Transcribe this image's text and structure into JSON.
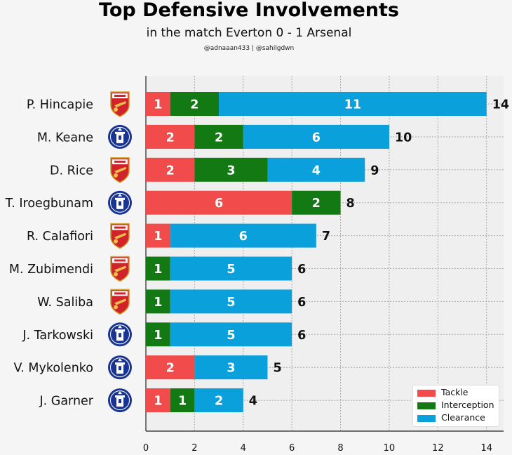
{
  "header": {
    "title": "Top Defensive Involvements",
    "subtitle": "in the match Everton 0 - 1 Arsenal",
    "credits": "@adnaaan433  | @sahilgdwn"
  },
  "colors": {
    "tackle": "#f24b4b",
    "interception": "#137a13",
    "clearance": "#0aa0dc",
    "arsenal_red": "#d1232a",
    "everton_blue": "#1a3590",
    "plot_bg": "#efefef",
    "page_bg": "#f5f5f5"
  },
  "chart_data": {
    "type": "bar",
    "orientation": "horizontal",
    "stacked": true,
    "categories": [
      "P. Hincapie",
      "M. Keane",
      "D. Rice",
      "T. Iroegbunam",
      "R. Calafiori",
      "M. Zubimendi",
      "W. Saliba",
      "J. Tarkowski",
      "V. Mykolenko",
      "J. Garner"
    ],
    "teams": [
      "Arsenal",
      "Everton",
      "Arsenal",
      "Everton",
      "Arsenal",
      "Arsenal",
      "Arsenal",
      "Everton",
      "Everton",
      "Everton"
    ],
    "series": [
      {
        "name": "Tackle",
        "key": "tackle",
        "values": [
          1,
          2,
          2,
          6,
          1,
          0,
          0,
          0,
          2,
          1
        ]
      },
      {
        "name": "Interception",
        "key": "interception",
        "values": [
          2,
          2,
          3,
          2,
          0,
          1,
          1,
          1,
          0,
          1
        ]
      },
      {
        "name": "Clearance",
        "key": "clearance",
        "values": [
          11,
          6,
          4,
          0,
          6,
          5,
          5,
          5,
          3,
          2
        ]
      }
    ],
    "totals": [
      14,
      10,
      9,
      8,
      7,
      6,
      6,
      6,
      5,
      4
    ],
    "xlim": [
      0,
      14.7
    ],
    "xticks": [
      0,
      2,
      4,
      6,
      8,
      10,
      12,
      14
    ],
    "grid": true,
    "legend_position": "bottom-right"
  }
}
